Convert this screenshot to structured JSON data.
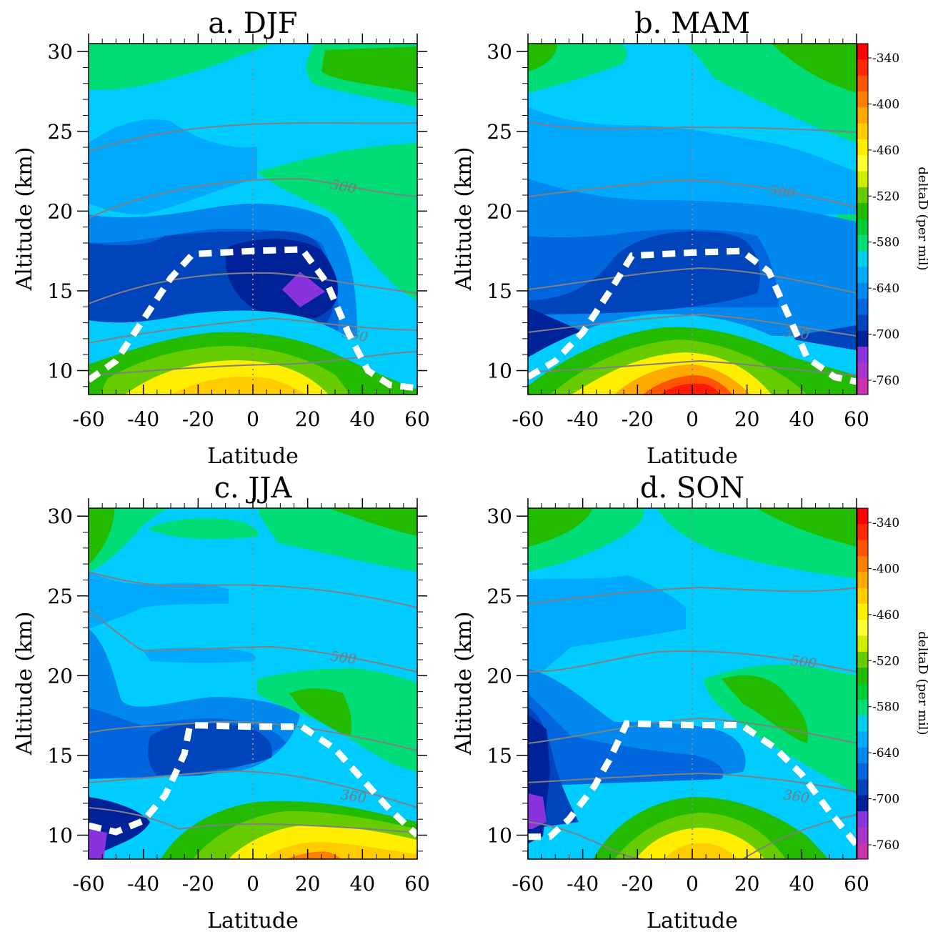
{
  "chart_data": [
    {
      "type": "heatmap",
      "title": "a. DJF",
      "xlabel": "Latitude",
      "ylabel": "Altitude (km)",
      "xlim": [
        -60,
        60
      ],
      "ylim": [
        8.5,
        30.5
      ],
      "xticks": [
        "-60",
        "-40",
        "-20",
        "0",
        "20",
        "40",
        "60"
      ],
      "yticks": [
        "10",
        "15",
        "20",
        "25",
        "30"
      ],
      "contour_labels": [
        "500",
        "360"
      ],
      "tropopause": [
        [
          -60,
          9.4
        ],
        [
          -50,
          10.6
        ],
        [
          -40,
          13.2
        ],
        [
          -30,
          15.8
        ],
        [
          -22,
          17.3
        ],
        [
          0,
          17.5
        ],
        [
          18,
          17.6
        ],
        [
          27,
          15.5
        ],
        [
          35,
          12.3
        ],
        [
          42,
          10.0
        ],
        [
          50,
          9.1
        ],
        [
          60,
          8.9
        ]
      ],
      "isentrope_values": [
        500,
        360
      ]
    },
    {
      "type": "heatmap",
      "title": "b. MAM",
      "xlabel": "Latitude",
      "ylabel": "Altitude (km)",
      "xlim": [
        -60,
        60
      ],
      "ylim": [
        8.5,
        30.5
      ],
      "xticks": [
        "-60",
        "-40",
        "-20",
        "0",
        "20",
        "40",
        "60"
      ],
      "yticks": [
        "10",
        "15",
        "20",
        "25",
        "30"
      ],
      "contour_labels": [
        "500",
        "360"
      ],
      "tropopause": [
        [
          -60,
          9.6
        ],
        [
          -50,
          10.6
        ],
        [
          -40,
          12.4
        ],
        [
          -30,
          15.0
        ],
        [
          -22,
          17.2
        ],
        [
          0,
          17.4
        ],
        [
          18,
          17.5
        ],
        [
          28,
          16.2
        ],
        [
          35,
          13.5
        ],
        [
          42,
          10.8
        ],
        [
          52,
          9.6
        ],
        [
          60,
          9.3
        ]
      ],
      "isentrope_values": [
        500,
        360
      ]
    },
    {
      "type": "heatmap",
      "title": "c. JJA",
      "xlabel": "Latitude",
      "ylabel": "Altitude (km)",
      "xlim": [
        -60,
        60
      ],
      "ylim": [
        8.5,
        30.5
      ],
      "xticks": [
        "-60",
        "-40",
        "-20",
        "0",
        "20",
        "40",
        "60"
      ],
      "yticks": [
        "10",
        "15",
        "20",
        "25",
        "30"
      ],
      "contour_labels": [
        "500",
        "360"
      ],
      "tropopause": [
        [
          -60,
          10.6
        ],
        [
          -50,
          10.2
        ],
        [
          -40,
          10.9
        ],
        [
          -32,
          12.5
        ],
        [
          -25,
          15.1
        ],
        [
          -23,
          16.9
        ],
        [
          0,
          16.8
        ],
        [
          18,
          16.8
        ],
        [
          30,
          15.4
        ],
        [
          40,
          13.5
        ],
        [
          50,
          11.6
        ],
        [
          60,
          10.0
        ]
      ],
      "isentrope_values": [
        500,
        360
      ]
    },
    {
      "type": "heatmap",
      "title": "d. SON",
      "xlabel": "Latitude",
      "ylabel": "Altitude (km)",
      "xlim": [
        -60,
        60
      ],
      "ylim": [
        8.5,
        30.5
      ],
      "xticks": [
        "-60",
        "-40",
        "-20",
        "0",
        "20",
        "40",
        "60"
      ],
      "yticks": [
        "10",
        "15",
        "20",
        "25",
        "30"
      ],
      "contour_labels": [
        "500",
        "360"
      ],
      "tropopause": [
        [
          -60,
          9.9
        ],
        [
          -52,
          9.9
        ],
        [
          -45,
          11.0
        ],
        [
          -36,
          13.0
        ],
        [
          -30,
          14.8
        ],
        [
          -24,
          17.0
        ],
        [
          0,
          16.9
        ],
        [
          18,
          16.9
        ],
        [
          30,
          15.5
        ],
        [
          40,
          13.8
        ],
        [
          50,
          11.5
        ],
        [
          60,
          9.4
        ]
      ],
      "isentrope_values": [
        500,
        360
      ]
    }
  ],
  "colorbar": {
    "title": "deltaD (per mil)",
    "tick_labels": [
      "-340",
      "-400",
      "-460",
      "-520",
      "-580",
      "-640",
      "-700",
      "-760"
    ],
    "levels_top_to_bottom": [
      -340,
      -360,
      -380,
      -400,
      -420,
      -440,
      -460,
      -480,
      -500,
      -520,
      -540,
      -560,
      -580,
      -600,
      -620,
      -640,
      -660,
      -680,
      -700,
      -720,
      -740,
      -760
    ],
    "colors_top_to_bottom": [
      "#ff0000",
      "#ff2a00",
      "#ff5500",
      "#ff8000",
      "#ffaa00",
      "#ffcc00",
      "#ffee00",
      "#ffff33",
      "#ccee00",
      "#66cc00",
      "#22bb00",
      "#00cc33",
      "#00dd77",
      "#00ccee",
      "#00aaff",
      "#0088ee",
      "#0066dd",
      "#0044bb",
      "#002299",
      "#8833dd",
      "#aa33cc",
      "#cc33aa"
    ]
  },
  "colors": {
    "low_cold": "#001c88",
    "mid_blue": "#0070dd",
    "cyan": "#00ccff",
    "green": "#00dd77",
    "yellow": "#ffee00",
    "red": "#ff1a00",
    "isentrope_line": "#808080",
    "tropopause_line": "#ffffff"
  }
}
